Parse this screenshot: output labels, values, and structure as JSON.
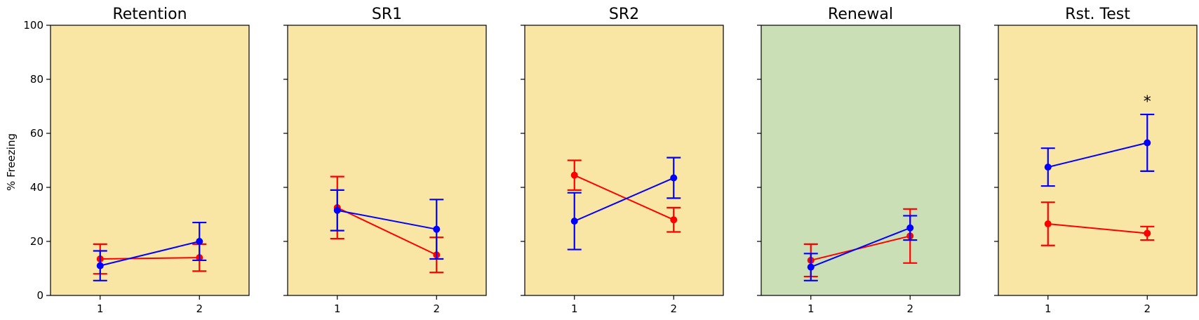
{
  "chart_data": {
    "type": "line",
    "ylabel": "% Freezing",
    "ylim": [
      0,
      100
    ],
    "yticks": [
      0,
      20,
      40,
      60,
      80,
      100
    ],
    "xticks": [
      "1",
      "2"
    ],
    "grid": false,
    "series_colors": {
      "red": "#ff0000",
      "blue": "#0000ff"
    },
    "panels": [
      {
        "title": "Retention",
        "background": "#f9e5a4",
        "series": [
          {
            "color": "red",
            "x": [
              1,
              2
            ],
            "y": [
              13.5,
              14
            ],
            "err": [
              5.5,
              5
            ]
          },
          {
            "color": "blue",
            "x": [
              1,
              2
            ],
            "y": [
              11,
              20
            ],
            "err": [
              5.5,
              7
            ]
          }
        ],
        "annotation": null
      },
      {
        "title": "SR1",
        "background": "#f9e5a4",
        "series": [
          {
            "color": "red",
            "x": [
              1,
              2
            ],
            "y": [
              32.5,
              15
            ],
            "err": [
              11.5,
              6.5
            ]
          },
          {
            "color": "blue",
            "x": [
              1,
              2
            ],
            "y": [
              31.5,
              24.5
            ],
            "err": [
              7.5,
              11
            ]
          }
        ],
        "annotation": null
      },
      {
        "title": "SR2",
        "background": "#f9e5a4",
        "series": [
          {
            "color": "red",
            "x": [
              1,
              2
            ],
            "y": [
              44.5,
              28
            ],
            "err": [
              5.5,
              4.5
            ]
          },
          {
            "color": "blue",
            "x": [
              1,
              2
            ],
            "y": [
              27.5,
              43.5
            ],
            "err": [
              10.5,
              7.5
            ]
          }
        ],
        "annotation": null
      },
      {
        "title": "Renewal",
        "background": "#cbdfb7",
        "series": [
          {
            "color": "red",
            "x": [
              1,
              2
            ],
            "y": [
              13,
              22
            ],
            "err": [
              6,
              10
            ]
          },
          {
            "color": "blue",
            "x": [
              1,
              2
            ],
            "y": [
              10.5,
              25
            ],
            "err": [
              5,
              4.5
            ]
          }
        ],
        "annotation": null
      },
      {
        "title": "Rst. Test",
        "background": "#f9e5a4",
        "series": [
          {
            "color": "red",
            "x": [
              1,
              2
            ],
            "y": [
              26.5,
              23
            ],
            "err": [
              8,
              2.5
            ]
          },
          {
            "color": "blue",
            "x": [
              1,
              2
            ],
            "y": [
              47.5,
              56.5
            ],
            "err": [
              7,
              10.5
            ]
          }
        ],
        "annotation": {
          "text": "*",
          "x": 2,
          "y": 73
        }
      }
    ]
  }
}
